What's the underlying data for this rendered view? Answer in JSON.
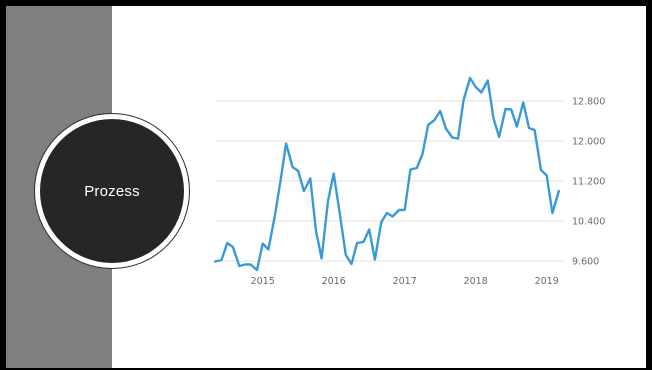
{
  "slide": {
    "circle_label": "Prozess"
  },
  "colors": {
    "frame": "#000000",
    "slide_bg": "#ffffff",
    "sidebar": "#7f7f7f",
    "circle": "#262626",
    "line": "#3a9ad9",
    "grid": "#e3e3e3",
    "tick_text": "#6b6b6b"
  },
  "chart_data": {
    "type": "line",
    "title": "",
    "xlabel": "",
    "ylabel": "",
    "x_ticks": [
      "2015",
      "2016",
      "2017",
      "2018",
      "2019"
    ],
    "y_ticks": [
      "9.600",
      "10.400",
      "11.200",
      "12.000",
      "12.800"
    ],
    "ylim": [
      9300,
      13300
    ],
    "xlim": [
      2014.3,
      2019.3
    ],
    "grid": true,
    "y_axis_side": "right",
    "series": [
      {
        "x": [
          2014.33,
          2014.42,
          2014.5,
          2014.58,
          2014.67,
          2014.75,
          2014.83,
          2014.92,
          2015.0,
          2015.08,
          2015.17,
          2015.25,
          2015.33,
          2015.42,
          2015.5,
          2015.58,
          2015.67,
          2015.75,
          2015.83,
          2015.92,
          2016.0,
          2016.08,
          2016.17,
          2016.25,
          2016.33,
          2016.42,
          2016.5,
          2016.58,
          2016.67,
          2016.75,
          2016.83,
          2016.92,
          2017.0,
          2017.08,
          2017.17,
          2017.25,
          2017.33,
          2017.42,
          2017.5,
          2017.58,
          2017.67,
          2017.75,
          2017.83,
          2017.92,
          2018.0,
          2018.08,
          2018.17,
          2018.25,
          2018.33,
          2018.42,
          2018.5,
          2018.58,
          2018.67,
          2018.75,
          2018.83,
          2018.92,
          2019.0,
          2019.08,
          2019.17
        ],
        "values": [
          9590,
          9620,
          9960,
          9880,
          9500,
          9530,
          9530,
          9420,
          9950,
          9830,
          10500,
          11200,
          11950,
          11480,
          11400,
          11000,
          11250,
          10200,
          9650,
          10800,
          11350,
          10600,
          9720,
          9540,
          9960,
          9980,
          10230,
          9630,
          10380,
          10560,
          10490,
          10620,
          10620,
          11430,
          11460,
          11740,
          12320,
          12420,
          12600,
          12250,
          12070,
          12050,
          12820,
          13260,
          13080,
          12970,
          13210,
          12450,
          12080,
          12640,
          12630,
          12290,
          12770,
          12260,
          12220,
          11420,
          11310,
          10560,
          11000
        ]
      }
    ]
  }
}
